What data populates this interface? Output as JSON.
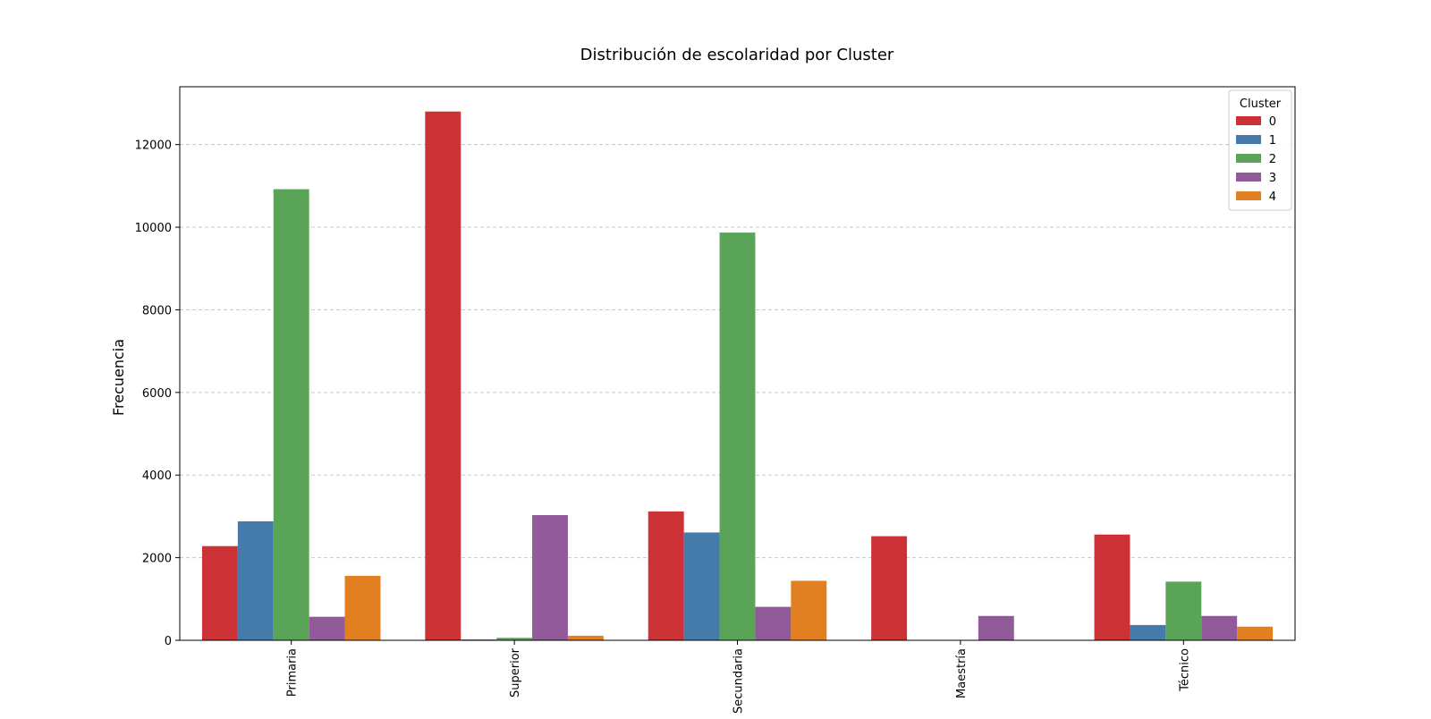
{
  "chart_data": {
    "type": "bar",
    "title": "Distribución de escolaridad por Cluster",
    "xlabel": "",
    "ylabel": "Frecuencia",
    "categories": [
      "Primaria",
      "Superior",
      "Secundaria",
      "Maestría",
      "Técnico"
    ],
    "ylim": [
      0,
      13400
    ],
    "yticks": [
      0,
      2000,
      4000,
      6000,
      8000,
      10000,
      12000
    ],
    "grid": "y-dashed",
    "legend": {
      "title": "Cluster",
      "placement": "top-right"
    },
    "series": [
      {
        "name": "0",
        "color": "#cc3135",
        "values": [
          2280,
          12800,
          3120,
          2520,
          2560
        ]
      },
      {
        "name": "1",
        "color": "#457bab",
        "values": [
          2880,
          20,
          2610,
          0,
          370
        ]
      },
      {
        "name": "2",
        "color": "#5aa457",
        "values": [
          10920,
          60,
          9870,
          0,
          1420
        ]
      },
      {
        "name": "3",
        "color": "#915a99",
        "values": [
          570,
          3030,
          810,
          590,
          590
        ]
      },
      {
        "name": "4",
        "color": "#e17f21",
        "values": [
          1560,
          110,
          1440,
          0,
          330
        ]
      }
    ]
  }
}
